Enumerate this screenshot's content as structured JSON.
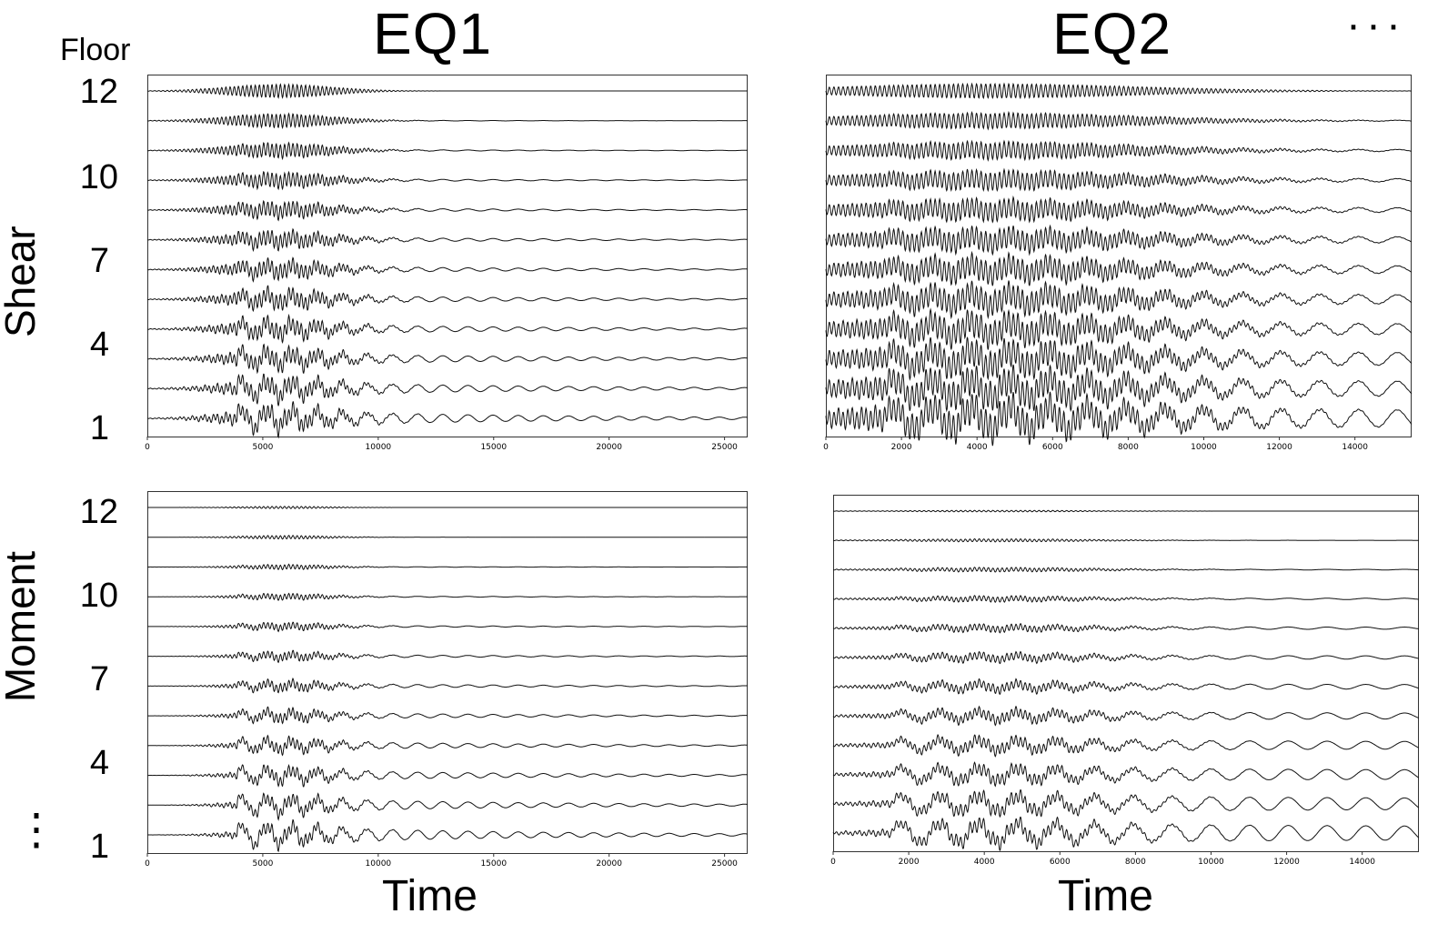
{
  "column_headers": [
    "EQ1",
    "EQ2"
  ],
  "row_headers": [
    "Shear",
    "Moment"
  ],
  "floor_header": "Floor",
  "floor_labels_top": [
    "12",
    "10",
    "7",
    "4",
    "1"
  ],
  "floor_labels_bottom": [
    "12",
    "10",
    "7",
    "4",
    "1"
  ],
  "x_axis_label": "Time",
  "ellipsis_right": "···",
  "ellipsis_bottom": "⋮",
  "chart_data": [
    {
      "type": "line",
      "panel": "EQ1-Shear",
      "traces": 12,
      "xlim": [
        0,
        26000
      ],
      "xticks": [
        "0",
        "5000",
        "10000",
        "15000",
        "20000",
        "25000"
      ]
    },
    {
      "type": "line",
      "panel": "EQ2-Shear",
      "traces": 12,
      "xlim": [
        0,
        15500
      ],
      "xticks": [
        "0",
        "2000",
        "4000",
        "6000",
        "8000",
        "10000",
        "12000",
        "14000"
      ]
    },
    {
      "type": "line",
      "panel": "EQ1-Moment",
      "traces": 12,
      "xlim": [
        0,
        26000
      ],
      "xticks": [
        "0",
        "5000",
        "10000",
        "15000",
        "20000",
        "25000"
      ]
    },
    {
      "type": "line",
      "panel": "EQ2-Moment",
      "traces": 12,
      "xlim": [
        0,
        15500
      ],
      "xticks": [
        "0",
        "2000",
        "4000",
        "6000",
        "8000",
        "10000",
        "12000",
        "14000"
      ]
    }
  ]
}
